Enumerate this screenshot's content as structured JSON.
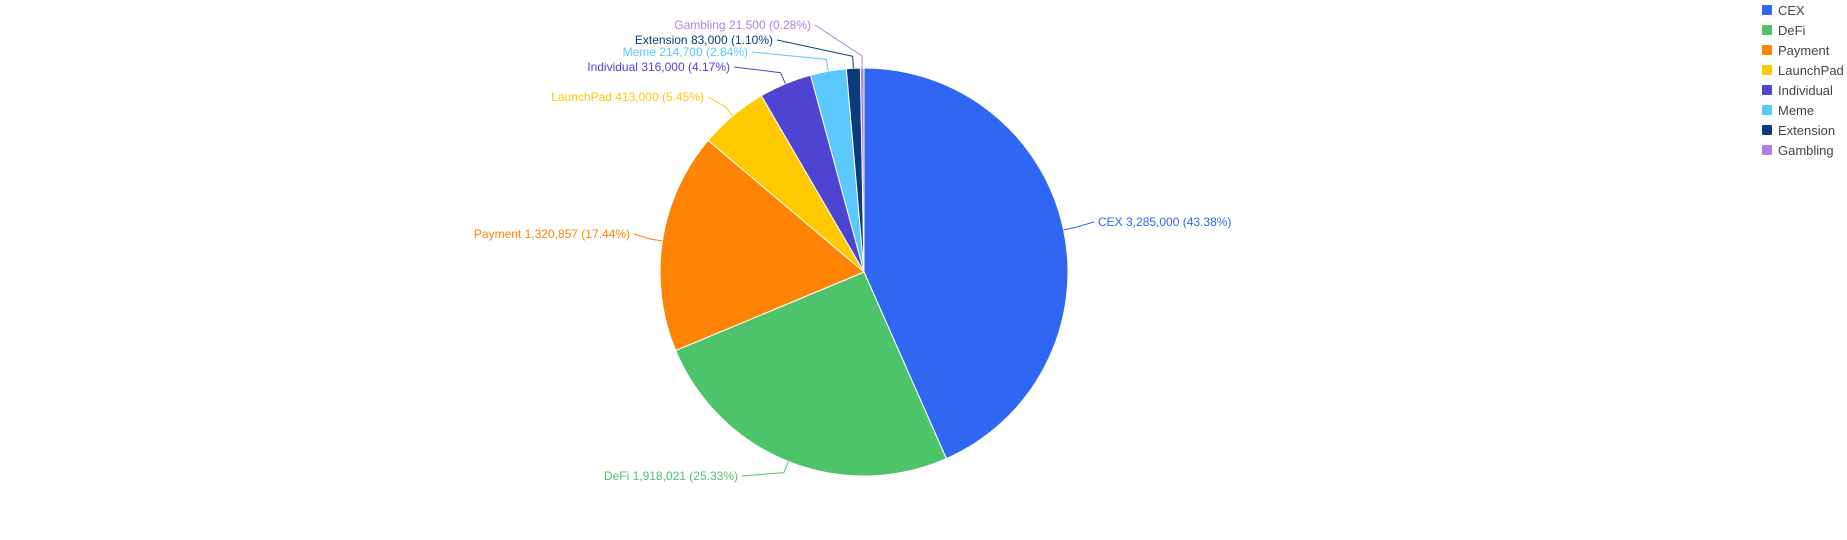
{
  "chart_data": {
    "type": "pie",
    "categories": [
      "CEX",
      "DeFi",
      "Payment",
      "LaunchPad",
      "Individual",
      "Meme",
      "Extension",
      "Gambling"
    ],
    "values": [
      3285000,
      1918021,
      1320857,
      413000,
      316000,
      214700,
      83000,
      21500
    ],
    "labels": [
      "CEX 3,285,000 (43.38%)",
      "DeFi 1,918,021 (25.33%)",
      "Payment 1,320,857 (17.44%)",
      "LaunchPad 413,000 (5.45%)",
      "Individual 316,000 (4.17%)",
      "Meme 214,700 (2.84%)",
      "Extension 83,000 (1.10%)",
      "Gambling 21,500 (0.28%)"
    ],
    "colors": [
      "#2f66f2",
      "#4ec46a",
      "#ff8305",
      "#ffc900",
      "#4e44d1",
      "#5ac8fa",
      "#0d3a7d",
      "#a982e3"
    ],
    "legend_position": "top-right"
  }
}
